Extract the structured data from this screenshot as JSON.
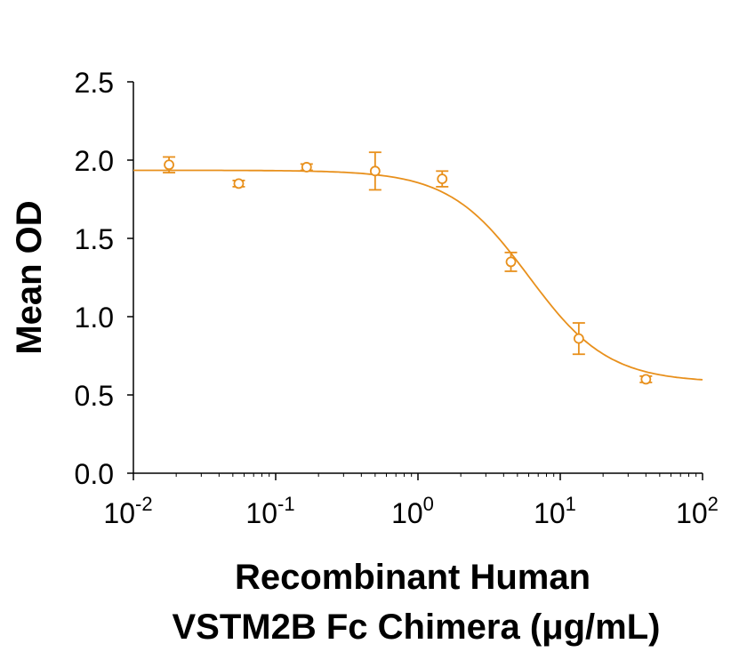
{
  "chart_data": {
    "type": "scatter",
    "title": "",
    "xlabel_line1": "Recombinant Human",
    "xlabel_line2": "VSTM2B Fc Chimera (μg/mL)",
    "ylabel": "Mean OD",
    "xscale": "log",
    "xlim": [
      0.01,
      100
    ],
    "ylim": [
      0,
      2.5
    ],
    "x_ticks": [
      {
        "base": "10",
        "exp": "-2"
      },
      {
        "base": "10",
        "exp": "-1"
      },
      {
        "base": "10",
        "exp": "0"
      },
      {
        "base": "10",
        "exp": "1"
      },
      {
        "base": "10",
        "exp": "2"
      }
    ],
    "y_ticks": [
      "0.0",
      "0.5",
      "1.0",
      "1.5",
      "2.0",
      "2.5"
    ],
    "grid": false,
    "color": "#E8901C",
    "points": [
      {
        "x": 0.0178,
        "y": 1.97,
        "err": 0.05
      },
      {
        "x": 0.055,
        "y": 1.85,
        "err": 0.02
      },
      {
        "x": 0.165,
        "y": 1.955,
        "err": 0.02
      },
      {
        "x": 0.5,
        "y": 1.93,
        "err": 0.12
      },
      {
        "x": 1.48,
        "y": 1.88,
        "err": 0.05
      },
      {
        "x": 4.5,
        "y": 1.35,
        "err": 0.06
      },
      {
        "x": 13.5,
        "y": 0.86,
        "err": 0.1
      },
      {
        "x": 40,
        "y": 0.6,
        "err": 0.02
      }
    ],
    "fit": {
      "model": "4PL",
      "top": 1.935,
      "bottom": 0.58,
      "ec50": 6.0,
      "hill": 1.55
    }
  }
}
